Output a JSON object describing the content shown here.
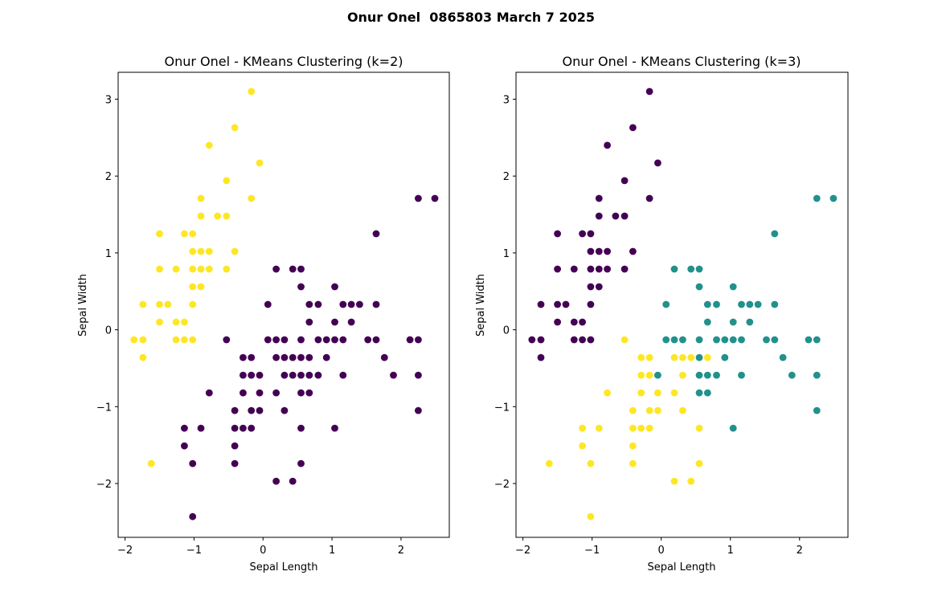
{
  "suptitle": "Onur Onel  0865803 March 7 2025",
  "colors": {
    "purple": "#440154",
    "teal": "#21918c",
    "yellow": "#fde725"
  },
  "chart_data": [
    {
      "type": "scatter",
      "title": "Onur Onel - KMeans Clustering (k=2)",
      "xlabel": "Sepal Length",
      "ylabel": "Sepal Width",
      "xlim": [
        -2.1,
        2.7
      ],
      "ylim": [
        -2.7,
        3.35
      ],
      "xticks": [
        -2,
        -1,
        0,
        1,
        2
      ],
      "yticks": [
        -2,
        -1,
        0,
        1,
        2,
        3
      ],
      "series": [
        {
          "color": "#fde725",
          "points": [
            [
              -0.17,
              3.1
            ],
            [
              -0.41,
              2.63
            ],
            [
              -0.78,
              2.4
            ],
            [
              -0.05,
              2.17
            ],
            [
              -0.53,
              1.94
            ],
            [
              -0.9,
              1.71
            ],
            [
              -0.17,
              1.71
            ],
            [
              -0.9,
              1.48
            ],
            [
              -0.66,
              1.48
            ],
            [
              -0.53,
              1.48
            ],
            [
              -1.5,
              1.25
            ],
            [
              -1.14,
              1.25
            ],
            [
              -1.02,
              1.25
            ],
            [
              -1.02,
              1.02
            ],
            [
              -0.9,
              1.02
            ],
            [
              -0.78,
              1.02
            ],
            [
              -0.41,
              1.02
            ],
            [
              -1.5,
              0.79
            ],
            [
              -1.26,
              0.79
            ],
            [
              -1.02,
              0.79
            ],
            [
              -0.9,
              0.79
            ],
            [
              -0.78,
              0.79
            ],
            [
              -0.53,
              0.79
            ],
            [
              -1.02,
              0.56
            ],
            [
              -0.9,
              0.56
            ],
            [
              -1.74,
              0.33
            ],
            [
              -1.5,
              0.33
            ],
            [
              -1.38,
              0.33
            ],
            [
              -1.02,
              0.33
            ],
            [
              -1.5,
              0.1
            ],
            [
              -1.26,
              0.1
            ],
            [
              -1.14,
              0.1
            ],
            [
              -1.87,
              -0.13
            ],
            [
              -1.74,
              -0.13
            ],
            [
              -1.26,
              -0.13
            ],
            [
              -1.14,
              -0.13
            ],
            [
              -1.02,
              -0.13
            ],
            [
              -1.74,
              -0.36
            ],
            [
              -1.62,
              -1.74
            ]
          ]
        },
        {
          "color": "#440154",
          "points": [
            [
              2.25,
              1.71
            ],
            [
              2.49,
              1.71
            ],
            [
              1.64,
              1.25
            ],
            [
              0.19,
              0.79
            ],
            [
              0.43,
              0.79
            ],
            [
              0.55,
              0.79
            ],
            [
              0.55,
              0.56
            ],
            [
              1.04,
              0.56
            ],
            [
              0.07,
              0.33
            ],
            [
              0.67,
              0.33
            ],
            [
              0.8,
              0.33
            ],
            [
              1.16,
              0.33
            ],
            [
              1.28,
              0.33
            ],
            [
              1.4,
              0.33
            ],
            [
              1.64,
              0.33
            ],
            [
              0.67,
              0.1
            ],
            [
              1.04,
              0.1
            ],
            [
              1.28,
              0.1
            ],
            [
              -0.53,
              -0.13
            ],
            [
              0.07,
              -0.13
            ],
            [
              0.19,
              -0.13
            ],
            [
              0.31,
              -0.13
            ],
            [
              0.55,
              -0.13
            ],
            [
              0.8,
              -0.13
            ],
            [
              0.92,
              -0.13
            ],
            [
              1.04,
              -0.13
            ],
            [
              1.16,
              -0.13
            ],
            [
              1.52,
              -0.13
            ],
            [
              1.64,
              -0.13
            ],
            [
              2.13,
              -0.13
            ],
            [
              2.25,
              -0.13
            ],
            [
              -0.29,
              -0.36
            ],
            [
              -0.17,
              -0.36
            ],
            [
              0.19,
              -0.36
            ],
            [
              0.31,
              -0.36
            ],
            [
              0.43,
              -0.36
            ],
            [
              0.55,
              -0.36
            ],
            [
              0.67,
              -0.36
            ],
            [
              0.92,
              -0.36
            ],
            [
              1.76,
              -0.36
            ],
            [
              -0.29,
              -0.59
            ],
            [
              -0.17,
              -0.59
            ],
            [
              -0.05,
              -0.59
            ],
            [
              0.31,
              -0.59
            ],
            [
              0.43,
              -0.59
            ],
            [
              0.55,
              -0.59
            ],
            [
              0.67,
              -0.59
            ],
            [
              0.8,
              -0.59
            ],
            [
              1.16,
              -0.59
            ],
            [
              1.89,
              -0.59
            ],
            [
              2.25,
              -0.59
            ],
            [
              -0.78,
              -0.82
            ],
            [
              -0.29,
              -0.82
            ],
            [
              -0.05,
              -0.82
            ],
            [
              0.19,
              -0.82
            ],
            [
              0.55,
              -0.82
            ],
            [
              0.67,
              -0.82
            ],
            [
              -0.41,
              -1.05
            ],
            [
              -0.17,
              -1.05
            ],
            [
              -0.05,
              -1.05
            ],
            [
              0.31,
              -1.05
            ],
            [
              2.25,
              -1.05
            ],
            [
              -1.14,
              -1.28
            ],
            [
              -0.9,
              -1.28
            ],
            [
              -0.41,
              -1.28
            ],
            [
              -0.29,
              -1.28
            ],
            [
              -0.17,
              -1.28
            ],
            [
              0.55,
              -1.28
            ],
            [
              1.04,
              -1.28
            ],
            [
              -1.14,
              -1.51
            ],
            [
              -0.41,
              -1.51
            ],
            [
              -1.02,
              -1.74
            ],
            [
              -0.41,
              -1.74
            ],
            [
              0.55,
              -1.74
            ],
            [
              0.19,
              -1.97
            ],
            [
              0.43,
              -1.97
            ],
            [
              -1.02,
              -2.43
            ]
          ]
        }
      ]
    },
    {
      "type": "scatter",
      "title": "Onur Onel - KMeans Clustering (k=3)",
      "xlabel": "Sepal Length",
      "ylabel": "Sepal Width",
      "xlim": [
        -2.1,
        2.7
      ],
      "ylim": [
        -2.7,
        3.35
      ],
      "xticks": [
        -2,
        -1,
        0,
        1,
        2
      ],
      "yticks": [
        -2,
        -1,
        0,
        1,
        2,
        3
      ],
      "series": [
        {
          "color": "#440154",
          "points": [
            [
              -0.17,
              3.1
            ],
            [
              -0.41,
              2.63
            ],
            [
              -0.78,
              2.4
            ],
            [
              -0.05,
              2.17
            ],
            [
              -0.53,
              1.94
            ],
            [
              -0.9,
              1.71
            ],
            [
              -0.17,
              1.71
            ],
            [
              -0.9,
              1.48
            ],
            [
              -0.66,
              1.48
            ],
            [
              -0.53,
              1.48
            ],
            [
              -1.5,
              1.25
            ],
            [
              -1.14,
              1.25
            ],
            [
              -1.02,
              1.25
            ],
            [
              -1.02,
              1.02
            ],
            [
              -0.9,
              1.02
            ],
            [
              -0.78,
              1.02
            ],
            [
              -0.41,
              1.02
            ],
            [
              -1.5,
              0.79
            ],
            [
              -1.26,
              0.79
            ],
            [
              -1.02,
              0.79
            ],
            [
              -0.9,
              0.79
            ],
            [
              -0.78,
              0.79
            ],
            [
              -0.53,
              0.79
            ],
            [
              -1.02,
              0.56
            ],
            [
              -0.9,
              0.56
            ],
            [
              -1.74,
              0.33
            ],
            [
              -1.5,
              0.33
            ],
            [
              -1.38,
              0.33
            ],
            [
              -1.02,
              0.33
            ],
            [
              -1.5,
              0.1
            ],
            [
              -1.26,
              0.1
            ],
            [
              -1.14,
              0.1
            ],
            [
              -1.87,
              -0.13
            ],
            [
              -1.74,
              -0.13
            ],
            [
              -1.26,
              -0.13
            ],
            [
              -1.14,
              -0.13
            ],
            [
              -1.02,
              -0.13
            ],
            [
              -1.74,
              -0.36
            ]
          ]
        },
        {
          "color": "#21918c",
          "points": [
            [
              2.25,
              1.71
            ],
            [
              2.49,
              1.71
            ],
            [
              1.64,
              1.25
            ],
            [
              0.19,
              0.79
            ],
            [
              0.43,
              0.79
            ],
            [
              0.55,
              0.79
            ],
            [
              0.55,
              0.56
            ],
            [
              1.04,
              0.56
            ],
            [
              0.07,
              0.33
            ],
            [
              0.67,
              0.33
            ],
            [
              0.8,
              0.33
            ],
            [
              1.16,
              0.33
            ],
            [
              1.28,
              0.33
            ],
            [
              1.4,
              0.33
            ],
            [
              1.64,
              0.33
            ],
            [
              0.67,
              0.1
            ],
            [
              1.04,
              0.1
            ],
            [
              1.28,
              0.1
            ],
            [
              0.07,
              -0.13
            ],
            [
              0.19,
              -0.13
            ],
            [
              0.31,
              -0.13
            ],
            [
              0.55,
              -0.13
            ],
            [
              0.8,
              -0.13
            ],
            [
              0.92,
              -0.13
            ],
            [
              1.04,
              -0.13
            ],
            [
              1.16,
              -0.13
            ],
            [
              1.52,
              -0.13
            ],
            [
              1.64,
              -0.13
            ],
            [
              2.13,
              -0.13
            ],
            [
              2.25,
              -0.13
            ],
            [
              0.55,
              -0.36
            ],
            [
              0.92,
              -0.36
            ],
            [
              1.76,
              -0.36
            ],
            [
              -0.05,
              -0.59
            ],
            [
              0.55,
              -0.59
            ],
            [
              0.67,
              -0.59
            ],
            [
              0.8,
              -0.59
            ],
            [
              1.16,
              -0.59
            ],
            [
              1.89,
              -0.59
            ],
            [
              2.25,
              -0.59
            ],
            [
              0.55,
              -0.82
            ],
            [
              0.67,
              -0.82
            ],
            [
              2.25,
              -1.05
            ],
            [
              1.04,
              -1.28
            ]
          ]
        },
        {
          "color": "#fde725",
          "points": [
            [
              -0.53,
              -0.13
            ],
            [
              -0.29,
              -0.36
            ],
            [
              -0.17,
              -0.36
            ],
            [
              0.19,
              -0.36
            ],
            [
              0.31,
              -0.36
            ],
            [
              0.43,
              -0.36
            ],
            [
              0.67,
              -0.36
            ],
            [
              -0.29,
              -0.59
            ],
            [
              -0.17,
              -0.59
            ],
            [
              0.31,
              -0.59
            ],
            [
              -0.78,
              -0.82
            ],
            [
              -0.29,
              -0.82
            ],
            [
              -0.05,
              -0.82
            ],
            [
              0.19,
              -0.82
            ],
            [
              -0.41,
              -1.05
            ],
            [
              -0.17,
              -1.05
            ],
            [
              -0.05,
              -1.05
            ],
            [
              0.31,
              -1.05
            ],
            [
              -1.14,
              -1.28
            ],
            [
              -0.9,
              -1.28
            ],
            [
              -0.41,
              -1.28
            ],
            [
              -0.29,
              -1.28
            ],
            [
              -0.17,
              -1.28
            ],
            [
              0.55,
              -1.28
            ],
            [
              -1.14,
              -1.51
            ],
            [
              -0.41,
              -1.51
            ],
            [
              -1.62,
              -1.74
            ],
            [
              -1.02,
              -1.74
            ],
            [
              -0.41,
              -1.74
            ],
            [
              0.55,
              -1.74
            ],
            [
              0.19,
              -1.97
            ],
            [
              0.43,
              -1.97
            ],
            [
              -1.02,
              -2.43
            ]
          ]
        }
      ]
    }
  ]
}
